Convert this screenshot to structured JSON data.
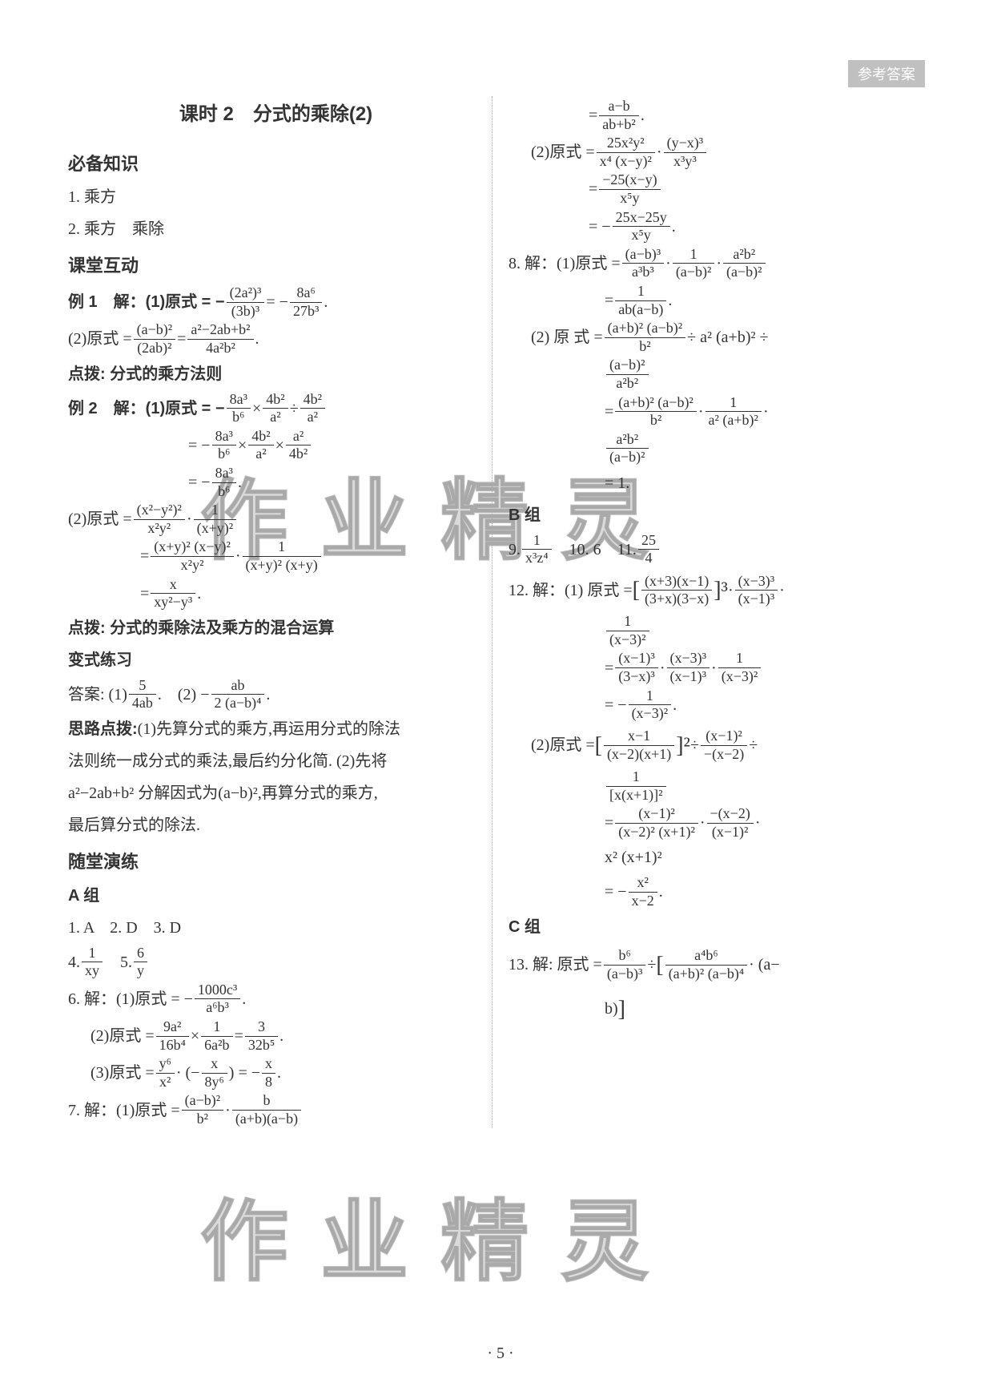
{
  "header": {
    "badge": "参考答案"
  },
  "page_number": "· 5 ·",
  "watermark_text": "作业精灵",
  "colors": {
    "text": "#333333",
    "badge_bg": "#c0c0c0",
    "badge_text": "#ffffff",
    "divider": "#aaaaaa",
    "watermark": "rgba(150,150,150,0.35)",
    "background": "#ffffff"
  },
  "left": {
    "title": "课时 2　分式的乘除(2)",
    "s1": {
      "head": "必备知识",
      "l1": "1. 乘方",
      "l2": "2. 乘方　乘除"
    },
    "s2": {
      "head": "课堂互动",
      "ex1_label": "例 1　解：(1)原式 = −",
      "ex1_f1n": "(2a²)³",
      "ex1_f1d": "(3b)³",
      "ex1_eq": " = −",
      "ex1_f2n": "8a⁶",
      "ex1_f2d": "27b³",
      "ex1_2": "(2)原式 = ",
      "ex1_2f1n": "(a−b)²",
      "ex1_2f1d": "(2ab)²",
      "ex1_2eq": " = ",
      "ex1_2f2n": "a²−2ab+b²",
      "ex1_2f2d": "4a²b²",
      "dianbo1": "点拨: 分式的乘方法则",
      "ex2_label": "例 2　解：(1)原式 = −",
      "ex2_f1n": "8a³",
      "ex2_f1d": "b⁶",
      "ex2_x": " × ",
      "ex2_f2n": "4b²",
      "ex2_f2d": "a²",
      "ex2_div": " ÷ ",
      "ex2_f3n": "4b²",
      "ex2_f3d": "a²",
      "ex2_l2a": "= −",
      "ex2_l2f1n": "8a³",
      "ex2_l2f1d": "b⁶",
      "ex2_l2x": " × ",
      "ex2_l2f2n": "4b²",
      "ex2_l2f2d": "a²",
      "ex2_l2x2": " × ",
      "ex2_l2f3n": "a²",
      "ex2_l2f3d": "4b²",
      "ex2_l3a": "= −",
      "ex2_l3fn": "8a³",
      "ex2_l3fd": "b⁶",
      "ex2_l3dot": ".",
      "ex2_2": "(2)原式 = ",
      "ex2_2f1n": "(x²−y²)²",
      "ex2_2f1d": "x²y²",
      "ex2_2dot": " · ",
      "ex2_2f2n": "1",
      "ex2_2f2d": "(x+y)²",
      "ex2_2l2a": "= ",
      "ex2_2l2f1n": "(x+y)² (x−y)²",
      "ex2_2l2f1d": "x²y²",
      "ex2_2l2dot": " · ",
      "ex2_2l2f2n": "1",
      "ex2_2l2f2d": "(x+y)² (x+y)",
      "ex2_2l3a": "= ",
      "ex2_2l3fn": "x",
      "ex2_2l3fd": "xy²−y³",
      "ex2_2l3dot": ".",
      "dianbo2": "点拨: 分式的乘除法及乘方的混合运算",
      "bianshi": "变式练习",
      "answers": "答案: (1)",
      "ans_f1n": "5",
      "ans_f1d": "4ab",
      "ans_dot1": ".　(2) −",
      "ans_f2n": "ab",
      "ans_f2d": "2 (a−b)⁴",
      "ans_dot2": ".",
      "silu_head": "思路点拨:",
      "silu_l1": "(1)先算分式的乘方,再运用分式的除法",
      "silu_l2": "法则统一成分式的乘法,最后约分化简. (2)先将",
      "silu_l3": "a²−2ab+b² 分解因式为(a−b)²,再算分式的乘方,",
      "silu_l4": "最后算分式的除法."
    },
    "s3": {
      "head": "随堂演练",
      "grpA": "A 组",
      "q123": "1. A　2. D　3. D",
      "q4": "4. ",
      "q4fn": "1",
      "q4fd": "xy",
      "q45": "　5. ",
      "q5fn": "6",
      "q5fd": "y",
      "q6": "6. 解：(1)原式 = −",
      "q6fn": "1000c³",
      "q6fd": "a⁶b³",
      "q6dot": ".",
      "q6_2": "(2)原式 = ",
      "q6_2f1n": "9a²",
      "q6_2f1d": "16b⁴",
      "q6_2x": " × ",
      "q6_2f2n": "1",
      "q6_2f2d": "6a²b",
      "q6_2eq": " = ",
      "q6_2f3n": "3",
      "q6_2f3d": "32b⁵",
      "q6_2dot": ".",
      "q6_3": "(3)原式 = ",
      "q6_3f1n": "y⁶",
      "q6_3f1d": "x²",
      "q6_3dot1": " · (−",
      "q6_3f2n": "x",
      "q6_3f2d": "8y⁶",
      "q6_3dot2": ") = −",
      "q6_3f3n": "x",
      "q6_3f3d": "8",
      "q6_3dot3": ".",
      "q7": "7. 解：(1)原式 = ",
      "q7f1n": "(a−b)²",
      "q7f1d": "b²",
      "q7dot1": " · ",
      "q7f2n": "b",
      "q7f2d": "(a+b)(a−b)"
    }
  },
  "right": {
    "r1a": "= ",
    "r1fn": "a−b",
    "r1fd": "ab+b²",
    "r1dot": ".",
    "r2": "(2)原式 = ",
    "r2f1n": "25x²y²",
    "r2f1d": "x⁴ (x−y)²",
    "r2dot": " · ",
    "r2f2n": "(y−x)³",
    "r2f2d": "x³y³",
    "r2l2a": "= ",
    "r2l2fn": "−25(x−y)",
    "r2l2fd": "x⁵y",
    "r2l3a": "= −",
    "r2l3fn": "25x−25y",
    "r2l3fd": "x⁵y",
    "r2l3dot": ".",
    "q8": "8. 解：(1)原式 = ",
    "q8f1n": "(a−b)³",
    "q8f1d": "a³b³",
    "q8d1": " · ",
    "q8f2n": "1",
    "q8f2d": "(a−b)²",
    "q8d2": " · ",
    "q8f3n": "a²b²",
    "q8f3d": "(a−b)²",
    "q8l2a": "= ",
    "q8l2fn": "1",
    "q8l2fd": "ab(a−b)",
    "q8l2dot": ".",
    "q8_2": "(2) 原 式 = ",
    "q8_2f1n": "(a+b)² (a−b)²",
    "q8_2f1d": "b²",
    "q8_2div": " ÷ a² (a+b)² ÷",
    "q8_2l2fn": "(a−b)²",
    "q8_2l2fd": "a²b²",
    "q8_2l3a": "= ",
    "q8_2l3f1n": "(a+b)² (a−b)²",
    "q8_2l3f1d": "b²",
    "q8_2l3d": " · ",
    "q8_2l3f2n": "1",
    "q8_2l3f2d": "a² (a+b)²",
    "q8_2l3d2": " ·",
    "q8_2l4fn": "a²b²",
    "q8_2l4fd": "(a−b)²",
    "q8_2l5": "= 1.",
    "grpB": "B 组",
    "q9": "9. ",
    "q9fn": "1",
    "q9fd": "x³z⁴",
    "q910": "　10. 6　11. ",
    "q11fn": "25",
    "q11fd": "4",
    "q12": "12. 解：(1) 原式 = ",
    "q12br_l": "[",
    "q12f1n": "(x+3)(x−1)",
    "q12f1d": "(3+x)(3−x)",
    "q12br_r": "]³",
    "q12d1": " · ",
    "q12f2n": "(x−3)³",
    "q12f2d": "(x−1)³",
    "q12d2": " ·",
    "q12l2fn": "1",
    "q12l2fd": "(x−3)²",
    "q12l3a": "= ",
    "q12l3f1n": "(x−1)³",
    "q12l3f1d": "(3−x)³",
    "q12l3d1": " · ",
    "q12l3f2n": "(x−3)³",
    "q12l3f2d": "(x−1)³",
    "q12l3d2": " · ",
    "q12l3f3n": "1",
    "q12l3f3d": "(x−3)²",
    "q12l4a": "= −",
    "q12l4fn": "1",
    "q12l4fd": "(x−3)²",
    "q12l4dot": ".",
    "q12_2": "(2)原式 = ",
    "q12_2brl": "[",
    "q12_2f1n": "x−1",
    "q12_2f1d": "(x−2)(x+1)",
    "q12_2brr": "]²",
    "q12_2div": " ÷ ",
    "q12_2f2n": "(x−1)²",
    "q12_2f2d": "−(x−2)",
    "q12_2div2": " ÷",
    "q12_2l2fn": "1",
    "q12_2l2fd": "[x(x+1)]²",
    "q12_2l3a": "= ",
    "q12_2l3f1n": "(x−1)²",
    "q12_2l3f1d": "(x−2)² (x+1)²",
    "q12_2l3d1": " · ",
    "q12_2l3f2n": "−(x−2)",
    "q12_2l3f2d": "(x−1)²",
    "q12_2l3d2": " ·",
    "q12_2l4": "x² (x+1)²",
    "q12_2l5a": "= −",
    "q12_2l5fn": "x²",
    "q12_2l5fd": "x−2",
    "q12_2l5dot": ".",
    "grpC": "C 组",
    "q13": "13. 解: 原式 = ",
    "q13f1n": "b⁶",
    "q13f1d": "(a−b)³",
    "q13div": " ÷ ",
    "q13brl": "[",
    "q13f2n": "a⁴b⁶",
    "q13f2d": "(a+b)² (a−b)⁴",
    "q13d1": " · (a−",
    "q13l2": "b)",
    "q13brr": "]"
  }
}
